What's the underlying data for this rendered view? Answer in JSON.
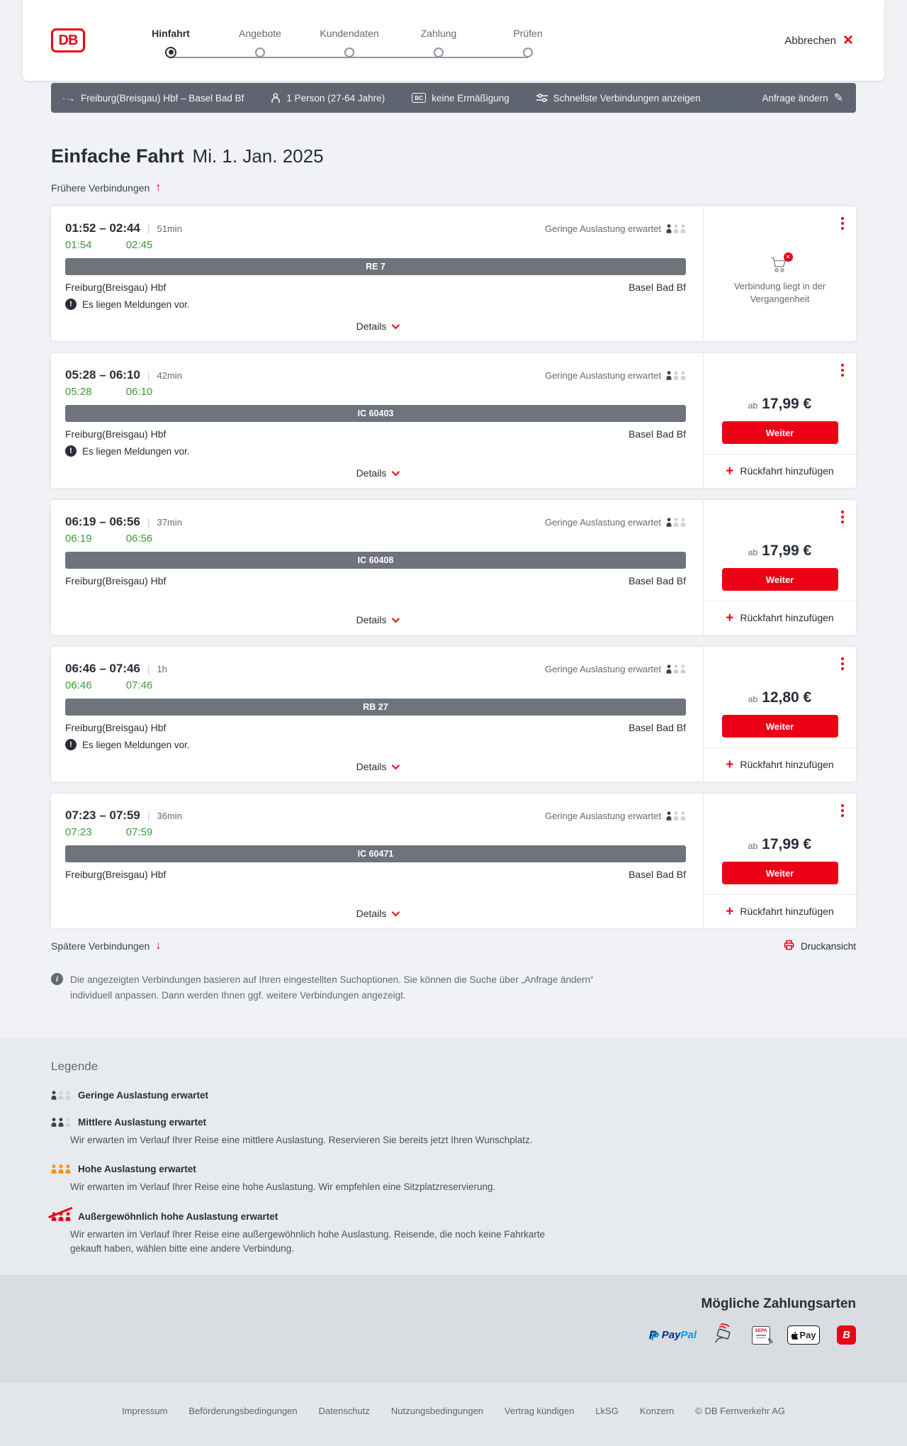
{
  "colors": {
    "brand_red": "#ec0016",
    "realtime_green": "#3d9b35",
    "slate_bar": "#5f6570",
    "dark_text": "#282d37",
    "occupancy_low": "#3c414b",
    "occupancy_light": "#cfd3d8",
    "occupancy_high": "#f39200"
  },
  "icons": {
    "close": "×",
    "edit": "✎",
    "arrow_up": "↑",
    "arrow_down": "↓",
    "plus": "+",
    "route": "·→",
    "warning": "!",
    "info": "i",
    "cart_x": "×",
    "bc": "BC",
    "sepa_pen": "✎"
  },
  "header": {
    "logo": "DB",
    "steps": [
      {
        "label": "Hinfahrt",
        "active": true
      },
      {
        "label": "Angebote",
        "active": false
      },
      {
        "label": "Kundendaten",
        "active": false
      },
      {
        "label": "Zahlung",
        "active": false
      },
      {
        "label": "Prüfen",
        "active": false
      }
    ],
    "cancel_label": "Abbrechen"
  },
  "query_bar": {
    "route": "Freiburg(Breisgau) Hbf – Basel Bad Bf",
    "passengers": "1 Person (27-64 Jahre)",
    "discount": "keine Ermäßigung",
    "fastest": "Schnellste Verbindungen anzeigen",
    "change_request": "Anfrage ändern"
  },
  "page": {
    "title": "Einfache Fahrt",
    "date": "Mi. 1. Jan. 2025",
    "earlier_label": "Frühere Verbindungen",
    "later_label": "Spätere Verbindungen",
    "print_label": "Druckansicht",
    "info_note": "Die angezeigten Verbindungen basieren auf Ihren eingestellten Suchoptionen. Sie können die Suche über „Anfrage ändern“ individuell anpassen. Dann werden Ihnen ggf. weitere Verbindungen angezeigt."
  },
  "connections": [
    {
      "times": "01:52 – 02:44",
      "duration": "51min",
      "rt_dep": "01:54",
      "rt_arr": "02:45",
      "train": "RE 7",
      "from": "Freiburg(Breisgau) Hbf",
      "to": "Basel Bad Bf",
      "occupancy": "Geringe Auslastung erwartet",
      "occupancy_level": "low",
      "messages": "Es liegen Meldungen vor.",
      "details_label": "Details",
      "past": true,
      "past_note": "Verbindung liegt in der Vergangenheit"
    },
    {
      "times": "05:28 – 06:10",
      "duration": "42min",
      "rt_dep": "05:28",
      "rt_arr": "06:10",
      "train": "IC 60403",
      "from": "Freiburg(Breisgau) Hbf",
      "to": "Basel Bad Bf",
      "occupancy": "Geringe Auslastung erwartet",
      "occupancy_level": "low",
      "messages": "Es liegen Meldungen vor.",
      "details_label": "Details",
      "past": false,
      "price_prefix": "ab",
      "price": "17,99 €",
      "cta": "Weiter",
      "add_return": "Rückfahrt hinzufügen"
    },
    {
      "times": "06:19 – 06:56",
      "duration": "37min",
      "rt_dep": "06:19",
      "rt_arr": "06:56",
      "train": "IC 60408",
      "from": "Freiburg(Breisgau) Hbf",
      "to": "Basel Bad Bf",
      "occupancy": "Geringe Auslastung erwartet",
      "occupancy_level": "low",
      "details_label": "Details",
      "past": false,
      "price_prefix": "ab",
      "price": "17,99 €",
      "cta": "Weiter",
      "add_return": "Rückfahrt hinzufügen"
    },
    {
      "times": "06:46 – 07:46",
      "duration": "1h",
      "rt_dep": "06:46",
      "rt_arr": "07:46",
      "train": "RB 27",
      "from": "Freiburg(Breisgau) Hbf",
      "to": "Basel Bad Bf",
      "occupancy": "Geringe Auslastung erwartet",
      "occupancy_level": "low",
      "messages": "Es liegen Meldungen vor.",
      "details_label": "Details",
      "past": false,
      "price_prefix": "ab",
      "price": "12,80 €",
      "cta": "Weiter",
      "add_return": "Rückfahrt hinzufügen"
    },
    {
      "times": "07:23 – 07:59",
      "duration": "36min",
      "rt_dep": "07:23",
      "rt_arr": "07:59",
      "train": "IC 60471",
      "from": "Freiburg(Breisgau) Hbf",
      "to": "Basel Bad Bf",
      "occupancy": "Geringe Auslastung erwartet",
      "occupancy_level": "low",
      "details_label": "Details",
      "past": false,
      "price_prefix": "ab",
      "price": "17,99 €",
      "cta": "Weiter",
      "add_return": "Rückfahrt hinzufügen"
    }
  ],
  "legend": {
    "title": "Legende",
    "items": [
      {
        "level": "low",
        "label": "Geringe Auslastung erwartet",
        "desc": ""
      },
      {
        "level": "medium",
        "label": "Mittlere Auslastung erwartet",
        "desc": "Wir erwarten im Verlauf Ihrer Reise eine mittlere Auslastung. Reservieren Sie bereits jetzt Ihren Wunschplatz."
      },
      {
        "level": "high",
        "label": "Hohe Auslastung erwartet",
        "desc": "Wir erwarten im Verlauf Ihrer Reise eine hohe Auslastung. Wir empfehlen eine Sitzplatzreservierung."
      },
      {
        "level": "extreme",
        "label": "Außergewöhnlich hohe Auslastung erwartet",
        "desc": "Wir erwarten im Verlauf Ihrer Reise eine außergewöhnlich hohe Auslastung. Reisende, die noch keine Fahrkarte gekauft haben, wählen bitte eine andere Verbindung."
      }
    ]
  },
  "payments": {
    "title": "Mögliche Zahlungsarten",
    "paypal_pay": "Pay",
    "paypal_pal": "Pal",
    "sepa_label": "SEPA",
    "applepay_label": "Pay",
    "bahnbonus_label": "B"
  },
  "footer": {
    "links": [
      "Impressum",
      "Beförderungsbedingungen",
      "Datenschutz",
      "Nutzungsbedingungen",
      "Vertrag kündigen",
      "LkSG",
      "Konzern"
    ],
    "copyright": "© DB Fernverkehr AG"
  }
}
